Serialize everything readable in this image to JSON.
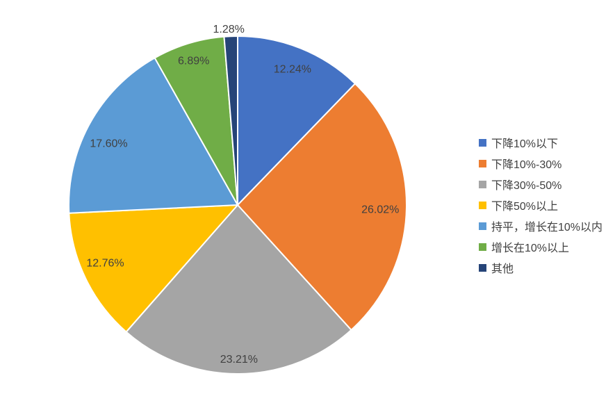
{
  "chart_data": {
    "type": "pie",
    "categories": [
      "下降10%以下",
      "下降10%-30%",
      "下降30%-50%",
      "下降50%以上",
      "持平，增长在10%以内",
      "增长在10%以上",
      "其他"
    ],
    "values": [
      12.24,
      26.02,
      23.21,
      12.76,
      17.6,
      6.89,
      1.28
    ],
    "data_labels": [
      "12.24%",
      "26.02%",
      "23.21%",
      "12.76%",
      "17.60%",
      "6.89%",
      "1.28%"
    ],
    "colors": [
      "#4472C4",
      "#ED7D31",
      "#A5A5A5",
      "#FFC000",
      "#5B9BD5",
      "#70AD47",
      "#264478"
    ],
    "start_angle_deg": 0,
    "direction": "clockwise",
    "legend_position": "right",
    "label_color": "#404040",
    "slice_border_color": "#FFFFFF",
    "label_radii": [
      0.865,
      0.845,
      0.915,
      0.857,
      0.845,
      0.89,
      1.04
    ]
  }
}
